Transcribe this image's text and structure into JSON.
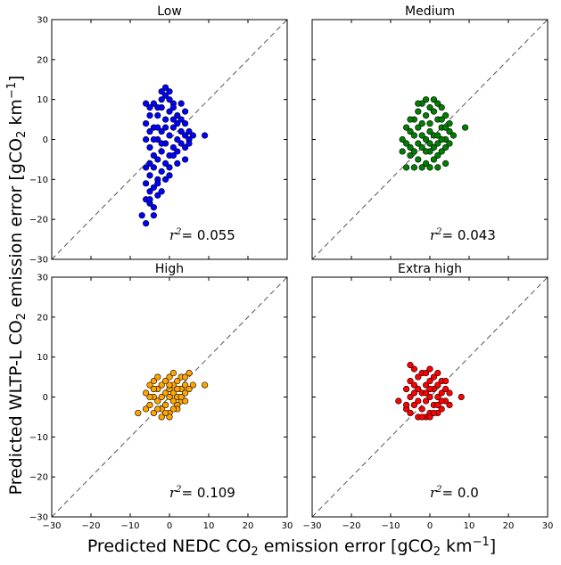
{
  "chart_data": [
    {
      "type": "scatter",
      "title": "Low",
      "color": "#0000ff",
      "r2_label": "= 0.055",
      "xlim": [
        -30,
        30
      ],
      "ylim": [
        -30,
        30
      ],
      "x_ticks": [
        "−30",
        "−20",
        "−10",
        "0",
        "10",
        "20",
        "30"
      ],
      "y_ticks": [
        "−30",
        "−20",
        "−10",
        "0",
        "10",
        "20",
        "30"
      ],
      "x_ticks_shown": false,
      "y_ticks_shown": true,
      "diagonal": "y = x (dashed)",
      "points": [
        [
          -7,
          -19
        ],
        [
          -6,
          -21
        ],
        [
          -6,
          -15
        ],
        [
          -5,
          -13
        ],
        [
          -5,
          -16
        ],
        [
          -4,
          -17
        ],
        [
          -6,
          -11
        ],
        [
          -5,
          -9
        ],
        [
          -4,
          -12
        ],
        [
          -3,
          -14
        ],
        [
          -3,
          -10
        ],
        [
          -4,
          -7
        ],
        [
          -3,
          -5
        ],
        [
          -2,
          -8
        ],
        [
          -2,
          -3
        ],
        [
          -1,
          -6
        ],
        [
          -3,
          0
        ],
        [
          -2,
          2
        ],
        [
          -1,
          -1
        ],
        [
          0,
          -4
        ],
        [
          0,
          1
        ],
        [
          1,
          -2
        ],
        [
          1,
          3
        ],
        [
          2,
          0
        ],
        [
          2,
          -3
        ],
        [
          3,
          2
        ],
        [
          3,
          -1
        ],
        [
          4,
          1
        ],
        [
          4,
          -2
        ],
        [
          5,
          0
        ],
        [
          -1,
          5
        ],
        [
          0,
          7
        ],
        [
          0,
          10
        ],
        [
          1,
          9
        ],
        [
          -1,
          11
        ],
        [
          -2,
          8
        ],
        [
          -3,
          6
        ],
        [
          -4,
          3
        ],
        [
          -5,
          8
        ],
        [
          -4,
          9
        ],
        [
          -2,
          12
        ],
        [
          -1,
          13
        ],
        [
          0,
          12
        ],
        [
          2,
          6
        ],
        [
          3,
          5
        ],
        [
          1,
          8
        ],
        [
          4,
          4
        ],
        [
          5,
          2
        ],
        [
          6,
          1
        ],
        [
          9,
          1
        ],
        [
          -5,
          -2
        ],
        [
          -6,
          0
        ],
        [
          -5,
          2
        ],
        [
          -4,
          -4
        ],
        [
          -3,
          -11
        ],
        [
          -2,
          -13
        ],
        [
          -5,
          -6
        ],
        [
          -4,
          -19
        ],
        [
          -5,
          -15
        ],
        [
          -6,
          -7
        ],
        [
          -6,
          4
        ],
        [
          -5,
          6
        ],
        [
          -6,
          9
        ],
        [
          -2,
          10
        ],
        [
          -1,
          -10
        ],
        [
          0,
          -7
        ],
        [
          2,
          4
        ],
        [
          3,
          9
        ],
        [
          4,
          7
        ],
        [
          -1,
          3
        ],
        [
          1,
          5
        ],
        [
          -3,
          3
        ],
        [
          2,
          -6
        ],
        [
          0,
          -9
        ],
        [
          -2,
          -1
        ],
        [
          -4,
          0
        ],
        [
          1,
          -4
        ],
        [
          5,
          -1
        ],
        [
          4,
          -5
        ],
        [
          -3,
          8
        ]
      ]
    },
    {
      "type": "scatter",
      "title": "Medium",
      "color": "#008000",
      "r2_label": "= 0.043",
      "xlim": [
        -30,
        30
      ],
      "ylim": [
        -30,
        30
      ],
      "x_ticks": [
        "−30",
        "−20",
        "−10",
        "0",
        "10",
        "20",
        "30"
      ],
      "y_ticks": [
        "−30",
        "−20",
        "−10",
        "0",
        "10",
        "20",
        "30"
      ],
      "x_ticks_shown": false,
      "y_ticks_shown": false,
      "diagonal": "y = x (dashed)",
      "points": [
        [
          -7,
          -3
        ],
        [
          -6,
          -7
        ],
        [
          -6,
          -1
        ],
        [
          -5,
          2
        ],
        [
          -5,
          -4
        ],
        [
          -4,
          -7
        ],
        [
          -4,
          1
        ],
        [
          -4,
          5
        ],
        [
          -3,
          -5
        ],
        [
          -3,
          3
        ],
        [
          -3,
          7
        ],
        [
          -2,
          -2
        ],
        [
          -2,
          4
        ],
        [
          -2,
          9
        ],
        [
          -1,
          -6
        ],
        [
          -1,
          0
        ],
        [
          -1,
          6
        ],
        [
          0,
          -3
        ],
        [
          0,
          2
        ],
        [
          0,
          8
        ],
        [
          1,
          -5
        ],
        [
          1,
          1
        ],
        [
          1,
          10
        ],
        [
          2,
          -1
        ],
        [
          2,
          5
        ],
        [
          2,
          -7
        ],
        [
          3,
          3
        ],
        [
          3,
          -3
        ],
        [
          3,
          8
        ],
        [
          4,
          0
        ],
        [
          4,
          6
        ],
        [
          4,
          -2
        ],
        [
          5,
          2
        ],
        [
          5,
          4
        ],
        [
          6,
          1
        ],
        [
          9,
          3
        ],
        [
          -5,
          5
        ],
        [
          -6,
          3
        ],
        [
          -2,
          -7
        ],
        [
          0,
          -7
        ],
        [
          1,
          7
        ],
        [
          2,
          9
        ],
        [
          -1,
          10
        ],
        [
          -3,
          9
        ],
        [
          4,
          -6
        ],
        [
          5,
          -1
        ],
        [
          -4,
          -3
        ],
        [
          -7,
          0
        ],
        [
          3,
          5
        ],
        [
          0,
          4
        ],
        [
          -1,
          -3
        ],
        [
          2,
          1
        ],
        [
          1,
          -2
        ],
        [
          -2,
          1
        ],
        [
          3,
          0
        ],
        [
          -3,
          -1
        ],
        [
          0,
          -1
        ],
        [
          4,
          3
        ],
        [
          -5,
          -2
        ],
        [
          2,
          -4
        ]
      ]
    },
    {
      "type": "scatter",
      "title": "High",
      "color": "#ffa500",
      "r2_label": "= 0.109",
      "xlim": [
        -30,
        30
      ],
      "ylim": [
        -30,
        30
      ],
      "x_ticks": [
        "−30",
        "−20",
        "−10",
        "0",
        "10",
        "20",
        "30"
      ],
      "y_ticks": [
        "−30",
        "−20",
        "−10",
        "0",
        "10",
        "20",
        "30"
      ],
      "x_ticks_shown": true,
      "y_ticks_shown": true,
      "diagonal": "y = x (dashed)",
      "points": [
        [
          -8,
          -4
        ],
        [
          -6,
          -3
        ],
        [
          -6,
          1
        ],
        [
          -5,
          -2
        ],
        [
          -5,
          3
        ],
        [
          -4,
          -4
        ],
        [
          -4,
          0
        ],
        [
          -4,
          4
        ],
        [
          -3,
          -1
        ],
        [
          -3,
          2
        ],
        [
          -3,
          5
        ],
        [
          -2,
          -3
        ],
        [
          -2,
          0
        ],
        [
          -2,
          3
        ],
        [
          -1,
          -2
        ],
        [
          -1,
          1
        ],
        [
          -1,
          4
        ],
        [
          0,
          -4
        ],
        [
          0,
          0
        ],
        [
          0,
          2
        ],
        [
          0,
          5
        ],
        [
          1,
          -1
        ],
        [
          1,
          1
        ],
        [
          1,
          3
        ],
        [
          2,
          -2
        ],
        [
          2,
          0
        ],
        [
          2,
          4
        ],
        [
          3,
          -1
        ],
        [
          3,
          2
        ],
        [
          3,
          5
        ],
        [
          4,
          1
        ],
        [
          4,
          3
        ],
        [
          4,
          -1
        ],
        [
          5,
          2
        ],
        [
          5,
          6
        ],
        [
          6,
          3
        ],
        [
          9,
          3
        ],
        [
          -2,
          -5
        ],
        [
          0,
          -5
        ],
        [
          1,
          6
        ],
        [
          -3,
          -3
        ],
        [
          2,
          2
        ],
        [
          3,
          0
        ],
        [
          -1,
          -4
        ],
        [
          0,
          3
        ],
        [
          4,
          5
        ],
        [
          -5,
          0
        ],
        [
          2,
          -3
        ],
        [
          -4,
          2
        ],
        [
          1,
          -3
        ]
      ]
    },
    {
      "type": "scatter",
      "title": "Extra high",
      "color": "#ff0000",
      "r2_label": "= 0.0",
      "xlim": [
        -30,
        30
      ],
      "ylim": [
        -30,
        30
      ],
      "x_ticks": [
        "−30",
        "−20",
        "−10",
        "0",
        "10",
        "20",
        "30"
      ],
      "y_ticks": [
        "−30",
        "−20",
        "−10",
        "0",
        "10",
        "20",
        "30"
      ],
      "x_ticks_shown": true,
      "y_ticks_shown": false,
      "diagonal": "y = x (dashed)",
      "points": [
        [
          -8,
          -1
        ],
        [
          -6,
          -3
        ],
        [
          -6,
          2
        ],
        [
          -5,
          -4
        ],
        [
          -5,
          0
        ],
        [
          -5,
          4
        ],
        [
          -4,
          -2
        ],
        [
          -4,
          3
        ],
        [
          -4,
          7
        ],
        [
          -3,
          -5
        ],
        [
          -3,
          -1
        ],
        [
          -3,
          5
        ],
        [
          -2,
          -3
        ],
        [
          -2,
          1
        ],
        [
          -2,
          6
        ],
        [
          -1,
          -5
        ],
        [
          -1,
          -1
        ],
        [
          -1,
          3
        ],
        [
          0,
          -4
        ],
        [
          0,
          0
        ],
        [
          0,
          4
        ],
        [
          0,
          7
        ],
        [
          1,
          -2
        ],
        [
          1,
          2
        ],
        [
          1,
          5
        ],
        [
          2,
          -4
        ],
        [
          2,
          0
        ],
        [
          2,
          3
        ],
        [
          3,
          -3
        ],
        [
          3,
          1
        ],
        [
          3,
          4
        ],
        [
          4,
          -1
        ],
        [
          4,
          2
        ],
        [
          5,
          -2
        ],
        [
          5,
          1
        ],
        [
          8,
          0
        ],
        [
          -5,
          8
        ],
        [
          -6,
          -2
        ],
        [
          0,
          -5
        ],
        [
          2,
          6
        ],
        [
          -3,
          2
        ],
        [
          1,
          -4
        ],
        [
          -1,
          6
        ],
        [
          3,
          -1
        ],
        [
          -2,
          -5
        ],
        [
          4,
          4
        ],
        [
          -4,
          1
        ],
        [
          2,
          -2
        ],
        [
          0,
          2
        ],
        [
          -1,
          1
        ]
      ]
    }
  ],
  "labels": {
    "r2_symbol": "r",
    "r2_exp": "2",
    "ylabel_pre": "Predicted WLTP-L  CO",
    "ylabel_sub": "2",
    "ylabel_mid": " emission error [gCO",
    "ylabel_sub2": "2",
    "ylabel_unit": " km",
    "ylabel_sup": "−1",
    "ylabel_end": "]",
    "xlabel_pre": "Predicted NEDC CO",
    "xlabel_sub": "2",
    "xlabel_mid": " emission error [gCO",
    "xlabel_sub2": "2",
    "xlabel_unit": " km",
    "xlabel_sup": "−1",
    "xlabel_end": "]"
  }
}
